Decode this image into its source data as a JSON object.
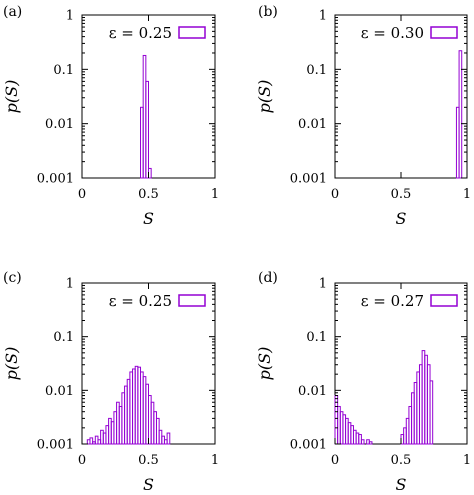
{
  "chart_data": [
    {
      "type": "bar",
      "panel_label": "(a)",
      "legend": "ε = 0.25",
      "legend_position": "top-right",
      "xlabel": "S",
      "ylabel": "p(S)",
      "xlim": [
        0,
        1
      ],
      "ylim": [
        0.001,
        1
      ],
      "yscale": "log",
      "xticks": [
        "0",
        "0.5",
        "1"
      ],
      "yticks": [
        "0.001",
        "0.01",
        "0.1",
        "1"
      ],
      "grid": false,
      "color": "#9400d3",
      "bin_width": 0.02,
      "bins": [
        {
          "x": 0.44,
          "p": 0.02
        },
        {
          "x": 0.46,
          "p": 0.18
        },
        {
          "x": 0.48,
          "p": 0.06
        },
        {
          "x": 0.5,
          "p": 0.0015
        }
      ]
    },
    {
      "type": "bar",
      "panel_label": "(b)",
      "legend": "ε = 0.30",
      "legend_position": "top-right",
      "xlabel": "S",
      "ylabel": "p(S)",
      "xlim": [
        0,
        1
      ],
      "ylim": [
        0.001,
        1
      ],
      "yscale": "log",
      "xticks": [
        "0",
        "0.5",
        "1"
      ],
      "yticks": [
        "0.001",
        "0.01",
        "0.1",
        "1"
      ],
      "grid": false,
      "color": "#9400d3",
      "bin_width": 0.02,
      "bins": [
        {
          "x": 0.92,
          "p": 0.02
        },
        {
          "x": 0.94,
          "p": 0.22
        }
      ]
    },
    {
      "type": "bar",
      "panel_label": "(c)",
      "legend": "ε = 0.25",
      "legend_position": "top-right",
      "xlabel": "S",
      "ylabel": "p(S)",
      "xlim": [
        0,
        1
      ],
      "ylim": [
        0.001,
        1
      ],
      "yscale": "log",
      "xticks": [
        "0",
        "0.5",
        "1"
      ],
      "yticks": [
        "0.001",
        "0.01",
        "0.1",
        "1"
      ],
      "grid": false,
      "color": "#9400d3",
      "bin_width": 0.02,
      "bins": [
        {
          "x": 0.04,
          "p": 0.0012
        },
        {
          "x": 0.06,
          "p": 0.0013
        },
        {
          "x": 0.08,
          "p": 0.0011
        },
        {
          "x": 0.1,
          "p": 0.0014
        },
        {
          "x": 0.12,
          "p": 0.0012
        },
        {
          "x": 0.14,
          "p": 0.0018
        },
        {
          "x": 0.16,
          "p": 0.0016
        },
        {
          "x": 0.18,
          "p": 0.0022
        },
        {
          "x": 0.2,
          "p": 0.003
        },
        {
          "x": 0.22,
          "p": 0.0026
        },
        {
          "x": 0.24,
          "p": 0.004
        },
        {
          "x": 0.26,
          "p": 0.006
        },
        {
          "x": 0.28,
          "p": 0.005
        },
        {
          "x": 0.3,
          "p": 0.009
        },
        {
          "x": 0.32,
          "p": 0.012
        },
        {
          "x": 0.34,
          "p": 0.016
        },
        {
          "x": 0.36,
          "p": 0.022
        },
        {
          "x": 0.38,
          "p": 0.025
        },
        {
          "x": 0.4,
          "p": 0.028
        },
        {
          "x": 0.42,
          "p": 0.027
        },
        {
          "x": 0.44,
          "p": 0.022
        },
        {
          "x": 0.46,
          "p": 0.018
        },
        {
          "x": 0.48,
          "p": 0.013
        },
        {
          "x": 0.5,
          "p": 0.008
        },
        {
          "x": 0.52,
          "p": 0.006
        },
        {
          "x": 0.54,
          "p": 0.004
        },
        {
          "x": 0.56,
          "p": 0.003
        },
        {
          "x": 0.58,
          "p": 0.0018
        },
        {
          "x": 0.6,
          "p": 0.0014
        },
        {
          "x": 0.62,
          "p": 0.0012
        },
        {
          "x": 0.64,
          "p": 0.0016
        }
      ]
    },
    {
      "type": "bar",
      "panel_label": "(d)",
      "legend": "ε = 0.27",
      "legend_position": "top-right",
      "xlabel": "S",
      "ylabel": "p(S)",
      "xlim": [
        0,
        1
      ],
      "ylim": [
        0.001,
        1
      ],
      "yscale": "log",
      "xticks": [
        "0",
        "0.5",
        "1"
      ],
      "yticks": [
        "0.001",
        "0.01",
        "0.1",
        "1"
      ],
      "grid": false,
      "color": "#9400d3",
      "bin_width": 0.02,
      "bins": [
        {
          "x": 0.0,
          "p": 0.008
        },
        {
          "x": 0.02,
          "p": 0.005
        },
        {
          "x": 0.04,
          "p": 0.004
        },
        {
          "x": 0.06,
          "p": 0.0035
        },
        {
          "x": 0.08,
          "p": 0.003
        },
        {
          "x": 0.1,
          "p": 0.0025
        },
        {
          "x": 0.12,
          "p": 0.0022
        },
        {
          "x": 0.14,
          "p": 0.0018
        },
        {
          "x": 0.16,
          "p": 0.0016
        },
        {
          "x": 0.18,
          "p": 0.0015
        },
        {
          "x": 0.2,
          "p": 0.0012
        },
        {
          "x": 0.24,
          "p": 0.0012
        },
        {
          "x": 0.26,
          "p": 0.0011
        },
        {
          "x": 0.5,
          "p": 0.0015
        },
        {
          "x": 0.52,
          "p": 0.002
        },
        {
          "x": 0.54,
          "p": 0.003
        },
        {
          "x": 0.56,
          "p": 0.005
        },
        {
          "x": 0.58,
          "p": 0.009
        },
        {
          "x": 0.6,
          "p": 0.014
        },
        {
          "x": 0.62,
          "p": 0.022
        },
        {
          "x": 0.64,
          "p": 0.03
        },
        {
          "x": 0.66,
          "p": 0.055
        },
        {
          "x": 0.68,
          "p": 0.045
        },
        {
          "x": 0.7,
          "p": 0.03
        },
        {
          "x": 0.72,
          "p": 0.015
        }
      ]
    }
  ]
}
